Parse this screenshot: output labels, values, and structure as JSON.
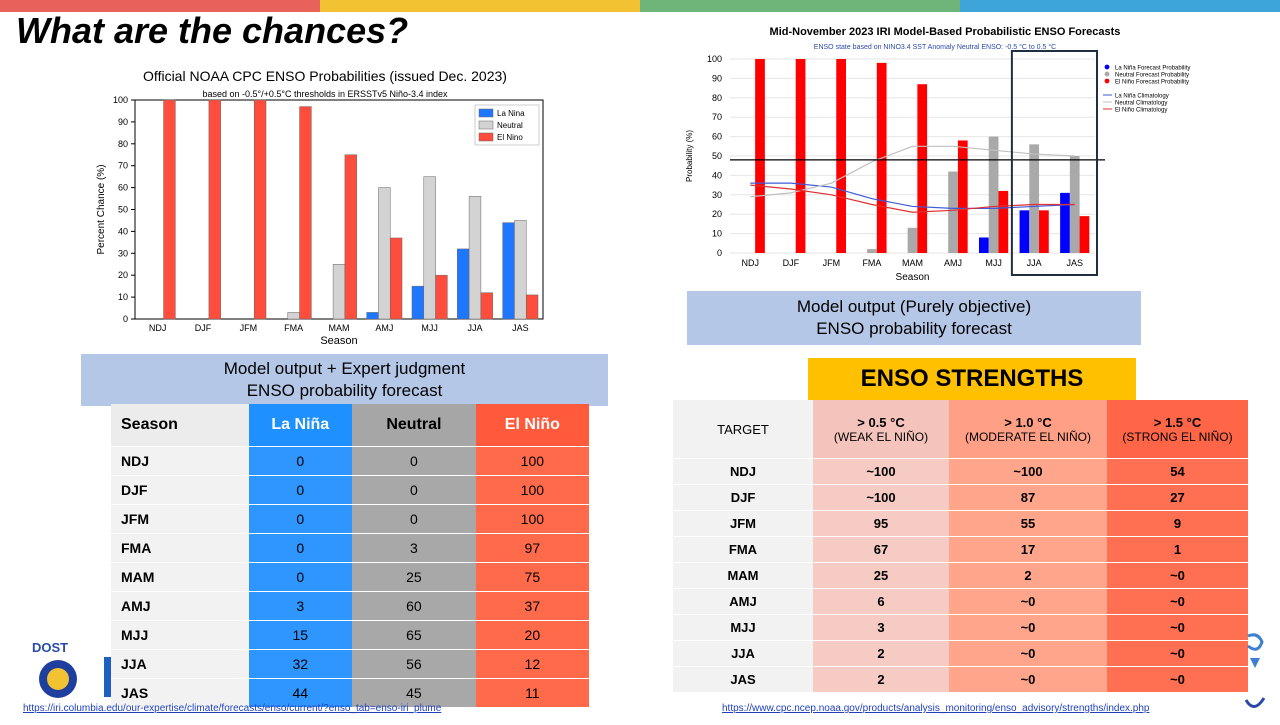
{
  "slide": {
    "title": "What are the chances?",
    "bar_colors": [
      "#e8615a",
      "#f2c232",
      "#6fb57a",
      "#3da5d9"
    ]
  },
  "noaa_chart": {
    "chart_data": {
      "type": "bar",
      "title": "Official NOAA CPC ENSO Probabilities (issued Dec. 2023)",
      "subtitle": "based on -0.5°/+0.5°C thresholds in ERSSTv5 Niño-3.4 index",
      "xlabel": "Season",
      "ylabel": "Percent Chance (%)",
      "ylim": [
        0,
        100
      ],
      "yticks": [
        0,
        10,
        20,
        30,
        40,
        50,
        60,
        70,
        80,
        90,
        100
      ],
      "categories": [
        "NDJ",
        "DJF",
        "JFM",
        "FMA",
        "MAM",
        "AMJ",
        "MJJ",
        "JJA",
        "JAS"
      ],
      "legend_position": "top-right",
      "series": [
        {
          "name": "La Nina",
          "color": "#1f77ff",
          "values": [
            0,
            0,
            0,
            0,
            0,
            3,
            15,
            32,
            44
          ]
        },
        {
          "name": "Neutral",
          "color": "#d3d3d3",
          "values": [
            0,
            0,
            0,
            3,
            25,
            60,
            65,
            56,
            45
          ]
        },
        {
          "name": "El Nino",
          "color": "#ff4d3d",
          "values": [
            100,
            100,
            100,
            97,
            75,
            37,
            20,
            12,
            11
          ]
        }
      ]
    }
  },
  "iri_chart": {
    "chart_data": {
      "type": "bar",
      "title": "Mid-November 2023 IRI Model-Based Probabilistic ENSO Forecasts",
      "subtitle": "ENSO state based on NINO3.4 SST Anomaly Neutral ENSO: -0.5 °C to 0.5 °C",
      "xlabel": "Season",
      "ylabel": "Probability (%)",
      "ylim": [
        0,
        100
      ],
      "yticks": [
        0,
        10,
        20,
        30,
        40,
        50,
        60,
        70,
        80,
        90,
        100
      ],
      "categories": [
        "NDJ",
        "DJF",
        "JFM",
        "FMA",
        "MAM",
        "AMJ",
        "MJJ",
        "JJA",
        "JAS"
      ],
      "legend_position": "top-right",
      "series": [
        {
          "name": "La Niña Forecast Probability",
          "color": "#0000ff",
          "values": [
            0,
            0,
            0,
            0,
            0,
            0,
            8,
            22,
            31
          ]
        },
        {
          "name": "Neutral Forecast Probability",
          "color": "#a9a9a9",
          "values": [
            0,
            0,
            0,
            2,
            13,
            42,
            60,
            56,
            50
          ]
        },
        {
          "name": "El Niño Forecast Probability",
          "color": "#ff0000",
          "values": [
            100,
            100,
            100,
            98,
            87,
            58,
            32,
            22,
            19
          ]
        }
      ],
      "climatology": [
        {
          "name": "La Niña Climatology",
          "color": "#3b5bdb",
          "values": [
            36,
            36,
            34,
            28,
            24,
            23,
            23,
            24,
            25
          ]
        },
        {
          "name": "Neutral Climatology",
          "color": "#c0c0c0",
          "values": [
            29,
            31,
            36,
            47,
            55,
            55,
            53,
            51,
            50
          ]
        },
        {
          "name": "El Niño Climatology",
          "color": "#e03030",
          "values": [
            35,
            33,
            30,
            25,
            21,
            22,
            24,
            25,
            25
          ]
        }
      ],
      "reference_line": 48,
      "highlight_categories": [
        "JJA",
        "JAS"
      ]
    }
  },
  "captions": {
    "right_line1": "Model output (Purely objective)",
    "right_line2": "ENSO probability forecast",
    "left_line1": "Model output + Expert judgment",
    "left_line2": "ENSO probability forecast"
  },
  "left_table": {
    "headers": [
      "Season",
      "La Niña",
      "Neutral",
      "El Niño"
    ],
    "rows": [
      [
        "NDJ",
        "0",
        "0",
        "100"
      ],
      [
        "DJF",
        "0",
        "0",
        "100"
      ],
      [
        "JFM",
        "0",
        "0",
        "100"
      ],
      [
        "FMA",
        "0",
        "3",
        "97"
      ],
      [
        "MAM",
        "0",
        "25",
        "75"
      ],
      [
        "AMJ",
        "3",
        "60",
        "37"
      ],
      [
        "MJJ",
        "15",
        "65",
        "20"
      ],
      [
        "JJA",
        "32",
        "56",
        "12"
      ],
      [
        "JAS",
        "44",
        "45",
        "11"
      ]
    ]
  },
  "strengths": {
    "title": "ENSO STRENGTHS",
    "headers": [
      {
        "line1": "TARGET",
        "line2": ""
      },
      {
        "line1": "> 0.5 °C",
        "line2": "(WEAK EL NIÑO)"
      },
      {
        "line1": "> 1.0 °C",
        "line2": "(MODERATE EL NIÑO)"
      },
      {
        "line1": "> 1.5 °C",
        "line2": "(STRONG EL NIÑO)"
      }
    ],
    "rows": [
      [
        "NDJ",
        "~100",
        "~100",
        "54"
      ],
      [
        "DJF",
        "~100",
        "87",
        "27"
      ],
      [
        "JFM",
        "95",
        "55",
        "9"
      ],
      [
        "FMA",
        "67",
        "17",
        "1"
      ],
      [
        "MAM",
        "25",
        "2",
        "~0"
      ],
      [
        "AMJ",
        "6",
        "~0",
        "~0"
      ],
      [
        "MJJ",
        "3",
        "~0",
        "~0"
      ],
      [
        "JJA",
        "2",
        "~0",
        "~0"
      ],
      [
        "JAS",
        "2",
        "~0",
        "~0"
      ]
    ]
  },
  "logos": {
    "dost_text": "DOST"
  },
  "links": {
    "left_url": "https://iri.columbia.edu/our-expertise/climate/forecasts/enso/current/?enso_tab=enso-iri_plume",
    "right_url": "https://www.cpc.ncep.noaa.gov/products/analysis_monitoring/enso_advisory/strengths/index.php"
  }
}
